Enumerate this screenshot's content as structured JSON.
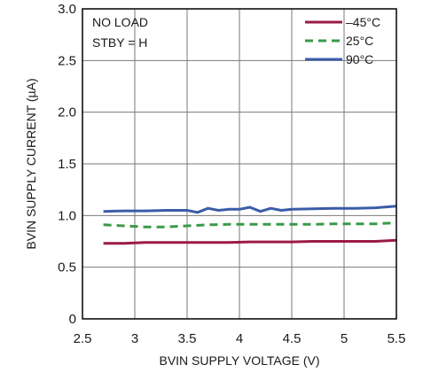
{
  "chart_data": {
    "type": "line",
    "title": "",
    "xlabel": "BVIN SUPPLY VOLTAGE (V)",
    "ylabel": "BVIN SUPPLY CURRENT (µA)",
    "xlim": [
      2.5,
      5.5
    ],
    "ylim": [
      0,
      3.0
    ],
    "x_ticks": [
      "2.5",
      "3",
      "3.5",
      "4",
      "4.5",
      "5",
      "5.5"
    ],
    "y_ticks": [
      "0",
      "0.5",
      "1.0",
      "1.5",
      "2.0",
      "2.5",
      "3.0"
    ],
    "grid": true,
    "legend_position": "top-right",
    "annotations": [
      "NO LOAD",
      "STBY = H"
    ],
    "series": [
      {
        "name": "–45°C",
        "color": "#9b1b45",
        "style": "solid",
        "x": [
          2.7,
          2.9,
          3.1,
          3.3,
          3.5,
          3.7,
          3.9,
          4.1,
          4.3,
          4.5,
          4.7,
          4.9,
          5.1,
          5.3,
          5.5
        ],
        "y": [
          0.73,
          0.73,
          0.74,
          0.74,
          0.74,
          0.74,
          0.74,
          0.745,
          0.745,
          0.745,
          0.75,
          0.75,
          0.75,
          0.75,
          0.76
        ]
      },
      {
        "name": "25°C",
        "color": "#3a9a48",
        "style": "dashed",
        "x": [
          2.7,
          2.9,
          3.1,
          3.3,
          3.5,
          3.7,
          3.9,
          4.1,
          4.3,
          4.5,
          4.7,
          4.9,
          5.1,
          5.3,
          5.5
        ],
        "y": [
          0.91,
          0.9,
          0.89,
          0.89,
          0.9,
          0.91,
          0.915,
          0.915,
          0.915,
          0.915,
          0.915,
          0.92,
          0.92,
          0.92,
          0.93
        ]
      },
      {
        "name": "90°C",
        "color": "#3b5ca8",
        "style": "solid",
        "x": [
          2.7,
          2.9,
          3.1,
          3.3,
          3.5,
          3.6,
          3.7,
          3.8,
          3.9,
          4.0,
          4.1,
          4.2,
          4.3,
          4.4,
          4.5,
          4.7,
          4.9,
          5.1,
          5.3,
          5.5
        ],
        "y": [
          1.04,
          1.045,
          1.045,
          1.05,
          1.05,
          1.03,
          1.07,
          1.05,
          1.06,
          1.06,
          1.08,
          1.04,
          1.07,
          1.05,
          1.06,
          1.065,
          1.07,
          1.07,
          1.075,
          1.09
        ]
      }
    ]
  }
}
